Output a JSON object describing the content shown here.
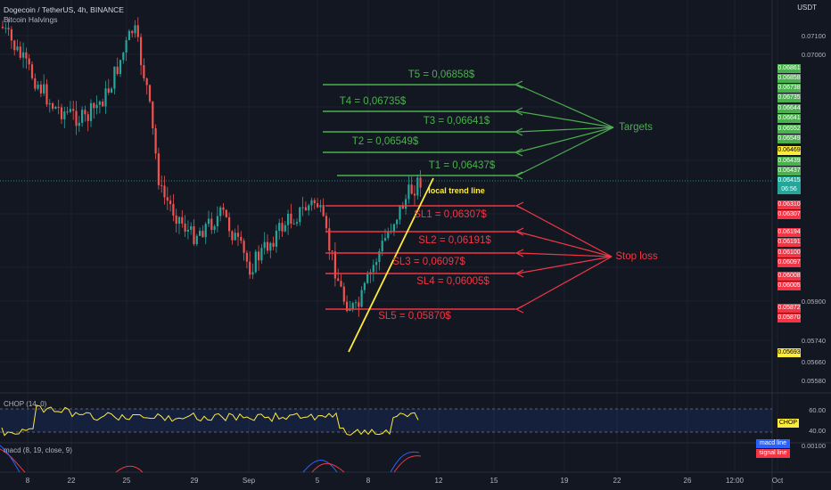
{
  "header": {
    "symbol": "Dogecoin / TetherUS, 4h, BINANCE",
    "indicator": "Bitcoin Halvings",
    "currency": "USDT"
  },
  "panes": {
    "chop_label": "CHOP (14, 0)",
    "macd_label": "macd (8, 19, close, 9)",
    "chop_badge": "CHOP",
    "macd_badge": "macd line",
    "signal_badge": "signal line"
  },
  "price_axis": [
    "0.07100",
    "0.07000",
    "0.05900",
    "0.05740",
    "0.05660",
    "0.05580"
  ],
  "osc_axis": [
    "60.00",
    "40.00",
    "0.00100"
  ],
  "date_axis": [
    "8",
    "22",
    "25",
    "29",
    "Sep",
    "5",
    "8",
    "12",
    "15",
    "19",
    "22",
    "26",
    "12:00",
    "Oct"
  ],
  "badges": {
    "green": [
      "0.06861",
      "0.06858",
      "0.06738",
      "0.06735",
      "0.06644",
      "0.06641",
      "0.06552",
      "0.06549"
    ],
    "yellow_top": "0.06469",
    "current": [
      "0.06439",
      "0.06437",
      "0.06415",
      "06:56"
    ],
    "red": [
      "0.06310",
      "0.06307",
      "0.06194",
      "0.06191",
      "0.06100",
      "0.06097",
      "0.06008",
      "0.06005",
      "0.05872",
      "0.05870"
    ],
    "yellow_bottom": "0.05693"
  },
  "annotations": {
    "targets_label": "Targets",
    "stoploss_label": "Stop loss",
    "trend_label": "local trend line",
    "targets": [
      "T5 = 0,06858$",
      "T4 = 0,06735$",
      "T3 = 0,06641$",
      "T2 = 0,06549$",
      "T1 = 0,06437$"
    ],
    "stops": [
      "SL1 = 0,06307$",
      "SL2 = 0,06191$",
      "SL3 = 0,06097$",
      "SL4 = 0,06005$",
      "SL5 = 0,05870$"
    ]
  },
  "colors": {
    "background": "#131722",
    "bull": "#26a69a",
    "bear": "#ef5350",
    "target": "#4caf50",
    "stop": "#f23645",
    "trend": "#ffeb3b",
    "chop": "#ffeb3b"
  }
}
